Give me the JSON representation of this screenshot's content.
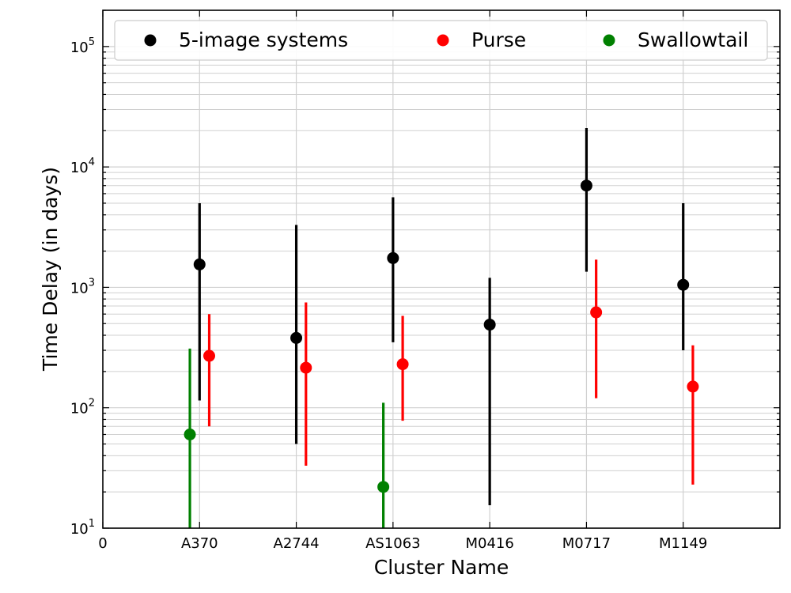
{
  "chart_data": {
    "type": "scatter",
    "title": "",
    "xlabel": "Cluster Name",
    "ylabel": "Time Delay (in days)",
    "y_scale": "log",
    "ylim": [
      10,
      200000
    ],
    "xlim": [
      0,
      7
    ],
    "categories": [
      "0",
      "A370",
      "A2744",
      "AS1063",
      "M0416",
      "M0717",
      "M1149"
    ],
    "grid": true,
    "legend_position": "top",
    "series": [
      {
        "name": "5-image systems",
        "color": "#000000",
        "points": [
          {
            "x": 1,
            "y": 1550,
            "lo": 115,
            "hi": 5000
          },
          {
            "x": 2,
            "y": 380,
            "lo": 50,
            "hi": 3300
          },
          {
            "x": 3,
            "y": 1750,
            "lo": 350,
            "hi": 5600
          },
          {
            "x": 4,
            "y": 490,
            "lo": 15.5,
            "hi": 1200
          },
          {
            "x": 5,
            "y": 7000,
            "lo": 1350,
            "hi": 21000
          },
          {
            "x": 6,
            "y": 1050,
            "lo": 300,
            "hi": 5000
          }
        ]
      },
      {
        "name": "Purse",
        "color": "#ff0000",
        "points": [
          {
            "x": 1.1,
            "y": 270,
            "lo": 70,
            "hi": 600
          },
          {
            "x": 2.1,
            "y": 215,
            "lo": 33,
            "hi": 750
          },
          {
            "x": 3.1,
            "y": 230,
            "lo": 78,
            "hi": 580
          },
          {
            "x": 5.1,
            "y": 620,
            "lo": 120,
            "hi": 1700
          },
          {
            "x": 6.1,
            "y": 150,
            "lo": 23,
            "hi": 330
          }
        ]
      },
      {
        "name": "Swallowtail",
        "color": "#008000",
        "points": [
          {
            "x": 0.9,
            "y": 60,
            "lo": 10,
            "hi": 310
          },
          {
            "x": 2.9,
            "y": 22,
            "lo": 10,
            "hi": 110
          }
        ]
      }
    ]
  }
}
